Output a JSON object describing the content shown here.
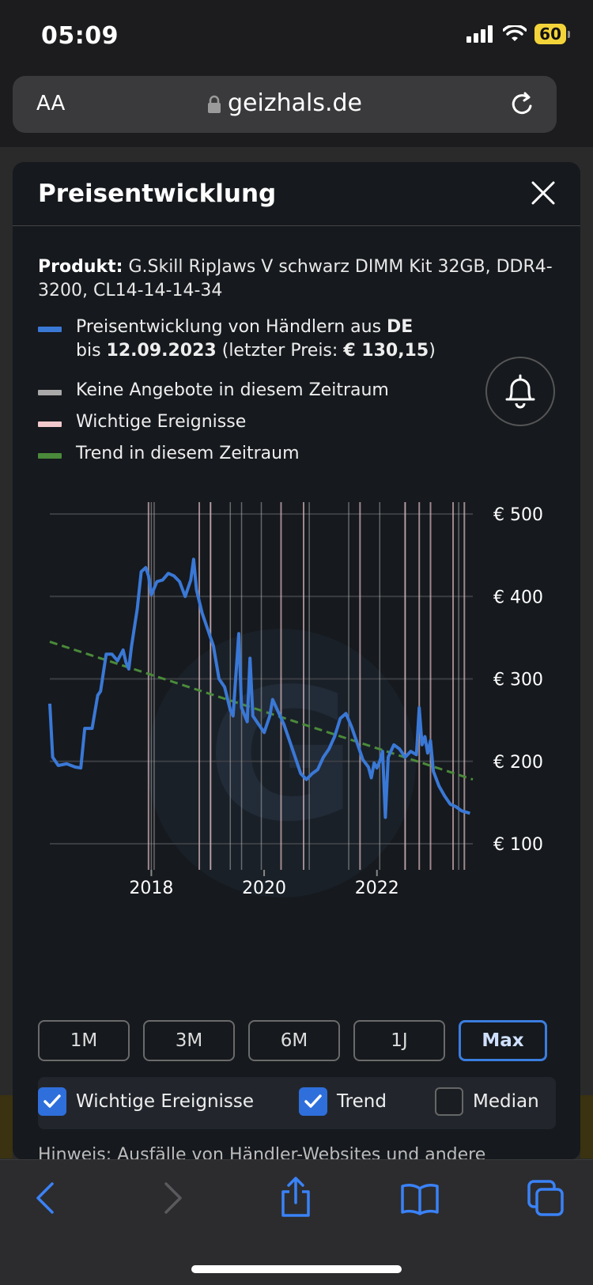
{
  "status": {
    "time": "05:09",
    "battery": "60"
  },
  "browser": {
    "text_size_label": "AA",
    "domain": "geizhals.de"
  },
  "modal": {
    "title": "Preisentwicklung",
    "product_label": "Produkt:",
    "product_name": "G.Skill RipJaws V schwarz DIMM Kit 32GB, DDR4-3200, CL14-14-14-34",
    "legend": {
      "price_line1_prefix": "Preisentwicklung von Händlern aus",
      "price_line1_country": "DE",
      "price_line2_prefix": "bis",
      "price_line2_date": "12.09.2023",
      "price_line2_mid": "(letzter Preis:",
      "price_line2_price": "€ 130,15",
      "price_line2_suffix": ")",
      "no_offers": "Keine Angebote in diesem Zeitraum",
      "events": "Wichtige Ereignisse",
      "trend": "Trend in diesem Zeitraum"
    },
    "ranges": [
      "1M",
      "3M",
      "6M",
      "1J",
      "Max"
    ],
    "active_range": "Max",
    "options": {
      "events": {
        "label": "Wichtige Ereignisse",
        "checked": true
      },
      "trend": {
        "label": "Trend",
        "checked": true
      },
      "median": {
        "label": "Median",
        "checked": false
      }
    },
    "hint": "Hinweis: Ausfälle von Händler-Websites und andere"
  },
  "chart_data": {
    "type": "line",
    "y_ticks": [
      "€ 500",
      "€ 400",
      "€ 300",
      "€ 200",
      "€ 100"
    ],
    "x_ticks": [
      "2018",
      "2020",
      "2022"
    ],
    "ylim": [
      100,
      500
    ],
    "xlim": [
      2016.2,
      2023.7
    ],
    "series": [
      {
        "color": "#3a78d6",
        "points": [
          [
            2016.2,
            270
          ],
          [
            2016.25,
            205
          ],
          [
            2016.35,
            195
          ],
          [
            2016.5,
            197
          ],
          [
            2016.65,
            193
          ],
          [
            2016.75,
            192
          ],
          [
            2016.82,
            240
          ],
          [
            2016.95,
            240
          ],
          [
            2017.05,
            280
          ],
          [
            2017.1,
            285
          ],
          [
            2017.2,
            330
          ],
          [
            2017.3,
            330
          ],
          [
            2017.4,
            322
          ],
          [
            2017.5,
            335
          ],
          [
            2017.55,
            320
          ],
          [
            2017.6,
            312
          ],
          [
            2017.65,
            340
          ],
          [
            2017.75,
            385
          ],
          [
            2017.82,
            430
          ],
          [
            2017.9,
            435
          ],
          [
            2017.95,
            425
          ],
          [
            2018.0,
            402
          ],
          [
            2018.1,
            418
          ],
          [
            2018.2,
            420
          ],
          [
            2018.3,
            428
          ],
          [
            2018.4,
            425
          ],
          [
            2018.5,
            418
          ],
          [
            2018.6,
            400
          ],
          [
            2018.7,
            420
          ],
          [
            2018.75,
            445
          ],
          [
            2018.8,
            408
          ],
          [
            2018.9,
            380
          ],
          [
            2019.0,
            360
          ],
          [
            2019.1,
            340
          ],
          [
            2019.2,
            300
          ],
          [
            2019.3,
            290
          ],
          [
            2019.4,
            262
          ],
          [
            2019.45,
            255
          ],
          [
            2019.55,
            355
          ],
          [
            2019.6,
            265
          ],
          [
            2019.7,
            248
          ],
          [
            2019.75,
            325
          ],
          [
            2019.8,
            255
          ],
          [
            2019.9,
            245
          ],
          [
            2020.0,
            235
          ],
          [
            2020.1,
            255
          ],
          [
            2020.15,
            275
          ],
          [
            2020.25,
            260
          ],
          [
            2020.35,
            245
          ],
          [
            2020.45,
            225
          ],
          [
            2020.55,
            205
          ],
          [
            2020.65,
            185
          ],
          [
            2020.75,
            178
          ],
          [
            2020.85,
            185
          ],
          [
            2020.95,
            190
          ],
          [
            2021.05,
            205
          ],
          [
            2021.15,
            215
          ],
          [
            2021.25,
            230
          ],
          [
            2021.35,
            252
          ],
          [
            2021.45,
            258
          ],
          [
            2021.55,
            242
          ],
          [
            2021.65,
            222
          ],
          [
            2021.75,
            202
          ],
          [
            2021.85,
            193
          ],
          [
            2021.9,
            180
          ],
          [
            2021.95,
            198
          ],
          [
            2022.0,
            192
          ],
          [
            2022.05,
            200
          ],
          [
            2022.1,
            212
          ],
          [
            2022.15,
            132
          ],
          [
            2022.2,
            205
          ],
          [
            2022.3,
            220
          ],
          [
            2022.4,
            215
          ],
          [
            2022.5,
            205
          ],
          [
            2022.6,
            212
          ],
          [
            2022.7,
            208
          ],
          [
            2022.75,
            265
          ],
          [
            2022.8,
            220
          ],
          [
            2022.85,
            230
          ],
          [
            2022.9,
            210
          ],
          [
            2022.95,
            225
          ],
          [
            2023.0,
            188
          ],
          [
            2023.1,
            170
          ],
          [
            2023.2,
            158
          ],
          [
            2023.3,
            148
          ],
          [
            2023.4,
            145
          ],
          [
            2023.5,
            140
          ],
          [
            2023.6,
            138
          ],
          [
            2023.65,
            137
          ]
        ]
      }
    ],
    "trend": {
      "color": "#4a8a3a",
      "from": [
        2016.2,
        345
      ],
      "to": [
        2023.7,
        178
      ]
    },
    "no_offer_years": [
      2018.0,
      2018.05,
      2019.05,
      2019.4,
      2019.6,
      2019.95,
      2020.8,
      2021.5,
      2022.05,
      2022.5,
      2023.45
    ],
    "event_years": [
      2017.95,
      2018.85,
      2019.05,
      2020.3,
      2020.7,
      2021.7,
      2022.5,
      2022.75,
      2022.95,
      2023.35,
      2023.55
    ],
    "event_color": "#d9b8bd",
    "no_offer_color": "#a9a9a9"
  }
}
